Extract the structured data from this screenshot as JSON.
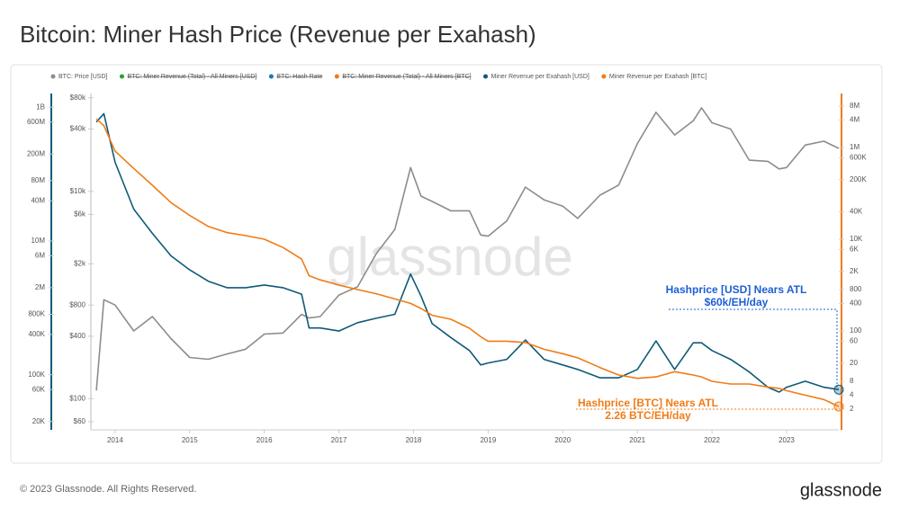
{
  "chart_data": {
    "type": "line",
    "title": "Bitcoin: Miner Hash Price (Revenue per Exahash)",
    "log_scale": true,
    "legend": [
      {
        "name": "BTC: Price [USD]",
        "color": "#8c8c8c",
        "hidden": false
      },
      {
        "name": "BTC: Miner Revenue (Total) - All Miners [USD]",
        "color": "#2ca02c",
        "hidden": true
      },
      {
        "name": "BTC: Hash Rate",
        "color": "#1f77b4",
        "hidden": true
      },
      {
        "name": "BTC: Miner Revenue (Total) - All Miners [BTC]",
        "color": "#f07b16",
        "hidden": true
      },
      {
        "name": "Miner Revenue per Exahash [USD]",
        "color": "#0f5a78",
        "hidden": false
      },
      {
        "name": "Miner Revenue per Exahash [BTC]",
        "color": "#f07b16",
        "hidden": false
      }
    ],
    "x": [
      2013.75,
      2013.85,
      2014.0,
      2014.25,
      2014.5,
      2014.75,
      2015.0,
      2015.25,
      2015.5,
      2015.75,
      2016.0,
      2016.25,
      2016.5,
      2016.6,
      2016.75,
      2017.0,
      2017.25,
      2017.5,
      2017.75,
      2017.96,
      2018.1,
      2018.25,
      2018.5,
      2018.75,
      2018.9,
      2019.0,
      2019.25,
      2019.5,
      2019.75,
      2020.0,
      2020.2,
      2020.5,
      2020.75,
      2021.0,
      2021.25,
      2021.5,
      2021.75,
      2021.86,
      2022.0,
      2022.25,
      2022.5,
      2022.75,
      2022.9,
      2023.0,
      2023.25,
      2023.5,
      2023.7
    ],
    "xlim": [
      2013.7,
      2023.7
    ],
    "xticks": [
      2014,
      2015,
      2016,
      2017,
      2018,
      2019,
      2020,
      2021,
      2022,
      2023
    ],
    "series": [
      {
        "color": "#8c8c8c",
        "axis": "y",
        "values": [
          120,
          900,
          800,
          450,
          620,
          380,
          250,
          240,
          270,
          300,
          420,
          430,
          650,
          600,
          620,
          1000,
          1200,
          2500,
          4300,
          17000,
          9000,
          8000,
          6500,
          6500,
          3800,
          3700,
          5200,
          11000,
          8300,
          7200,
          5500,
          9200,
          11500,
          29000,
          58000,
          35000,
          48000,
          64000,
          46000,
          40000,
          20000,
          19500,
          16500,
          17000,
          28000,
          30500,
          26000
        ]
      },
      {
        "color": "#0f5a78",
        "axis": "y3",
        "values": [
          600000000,
          800000000,
          150000000,
          30000000,
          13000000,
          6000000,
          3700000,
          2500000,
          2000000,
          2000000,
          2200000,
          2000000,
          1600000,
          500000,
          500000,
          450000,
          600000,
          700000,
          800000,
          3200000,
          1500000,
          580000,
          360000,
          230000,
          140000,
          150000,
          170000,
          330000,
          170000,
          140000,
          120000,
          90000,
          90000,
          120000,
          320000,
          120000,
          300000,
          300000,
          230000,
          170000,
          110000,
          65000,
          55000,
          65000,
          80000,
          65000,
          60000
        ]
      },
      {
        "color": "#f07b16",
        "axis": "y2",
        "values": [
          4200000,
          3000000,
          830000,
          350000,
          150000,
          63000,
          33000,
          19000,
          14000,
          12000,
          10000,
          6600,
          3700,
          1600,
          1300,
          1000,
          800,
          650,
          500,
          400,
          310,
          220,
          180,
          115,
          75,
          60,
          60,
          56,
          40,
          32,
          26,
          16,
          11,
          9.3,
          10,
          13,
          11,
          10,
          8,
          7,
          7,
          6,
          5.6,
          5,
          4,
          3.2,
          2.26
        ]
      }
    ],
    "ylim": [
      50,
      88000
    ],
    "yticks": [
      {
        "value": 80000,
        "label": "$80k"
      },
      {
        "value": 40000,
        "label": "$40k"
      },
      {
        "value": 10000,
        "label": "$10k"
      },
      {
        "value": 6000,
        "label": "$6k"
      },
      {
        "value": 2000,
        "label": "$2k"
      },
      {
        "value": 800,
        "label": "$800"
      },
      {
        "value": 400,
        "label": "$400"
      },
      {
        "value": 100,
        "label": "$100"
      },
      {
        "value": 60,
        "label": "$60"
      }
    ],
    "y3lim": [
      15000,
      1600000000
    ],
    "y3ticks": [
      {
        "value": 1000000000,
        "label": "1B"
      },
      {
        "value": 600000000,
        "label": "600M"
      },
      {
        "value": 200000000,
        "label": "200M"
      },
      {
        "value": 80000000,
        "label": "80M"
      },
      {
        "value": 40000000,
        "label": "40M"
      },
      {
        "value": 10000000,
        "label": "10M"
      },
      {
        "value": 6000000,
        "label": "6M"
      },
      {
        "value": 2000000,
        "label": "2M"
      },
      {
        "value": 800000,
        "label": "800K"
      },
      {
        "value": 400000,
        "label": "400K"
      },
      {
        "value": 100000,
        "label": "100K"
      },
      {
        "value": 60000,
        "label": "60K"
      },
      {
        "value": 20000,
        "label": "20K"
      }
    ],
    "y2lim": [
      0.7,
      15000000
    ],
    "y2ticks": [
      {
        "value": 8000000,
        "label": "8M"
      },
      {
        "value": 4000000,
        "label": "4M"
      },
      {
        "value": 1000000,
        "label": "1M"
      },
      {
        "value": 600000,
        "label": "600K"
      },
      {
        "value": 200000,
        "label": "200K"
      },
      {
        "value": 40000,
        "label": "40K"
      },
      {
        "value": 10000,
        "label": "10K"
      },
      {
        "value": 6000,
        "label": "6K"
      },
      {
        "value": 2000,
        "label": "2K"
      },
      800,
      400,
      100,
      60,
      20,
      8,
      4,
      2
    ],
    "annotations": [
      {
        "lines": [
          "Hashprice [USD] Nears ATL",
          "$60k/EH/day"
        ],
        "color": "#1c5fd6"
      },
      {
        "lines": [
          "Hashprice [BTC] Nears ATL",
          "2.26 BTC/EH/day"
        ],
        "color": "#f07b16"
      }
    ],
    "watermark": "glassnode"
  },
  "footer": {
    "copyright": "© 2023 Glassnode. All Rights Reserved.",
    "logo": "glassnode"
  }
}
